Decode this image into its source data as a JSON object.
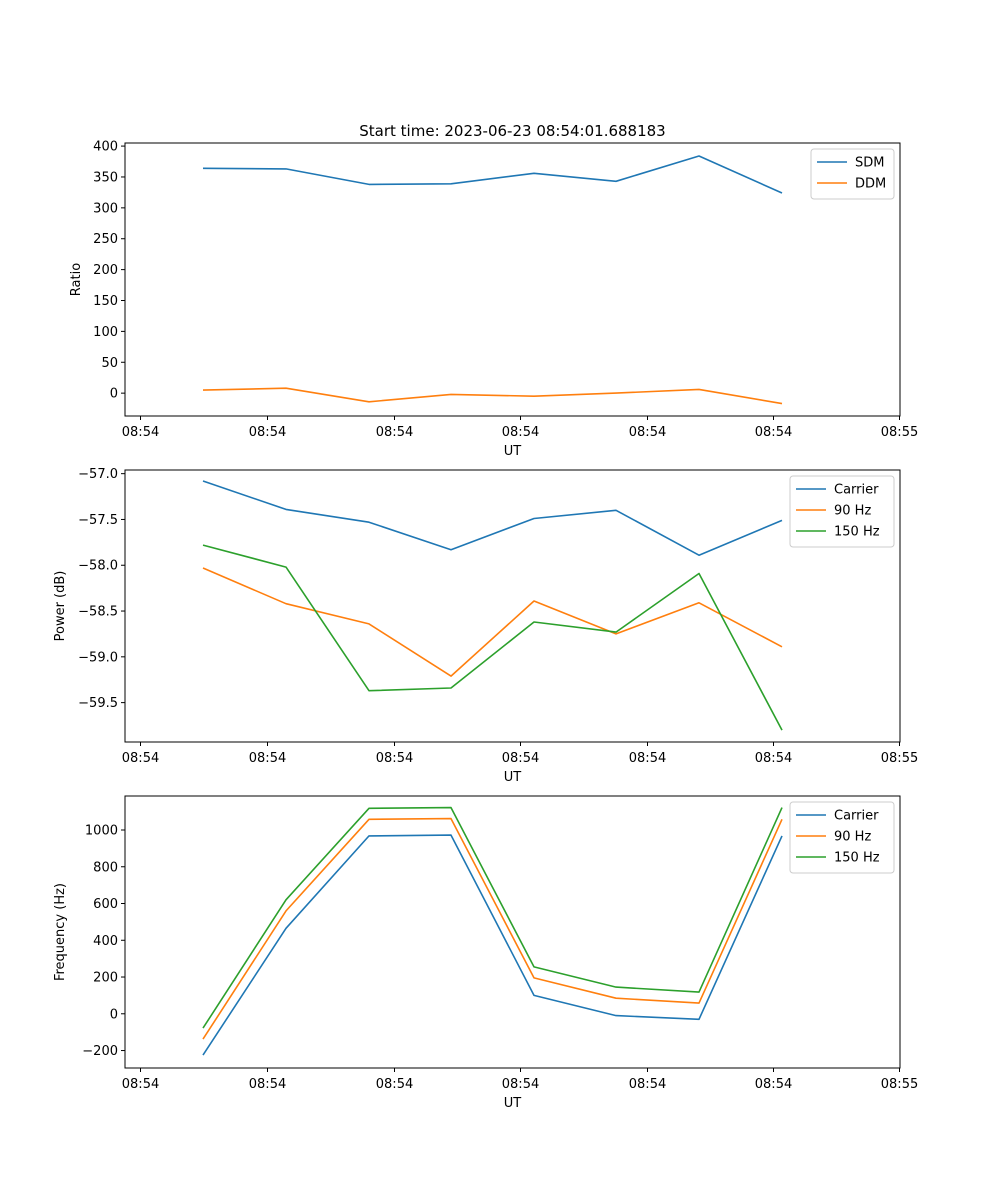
{
  "figure": {
    "title": "Start time: 2023-06-23 08:54:01.688183"
  },
  "chart_data": [
    {
      "type": "line",
      "xlabel": "UT",
      "ylabel": "Ratio",
      "ylim": [
        -37,
        405
      ],
      "yticks": [
        0,
        50,
        100,
        150,
        200,
        250,
        300,
        350,
        400
      ],
      "ytick_labels": [
        "0",
        "50",
        "100",
        "150",
        "200",
        "250",
        "300",
        "350",
        "400"
      ],
      "xtick_labels": [
        "08:54",
        "08:54",
        "08:54",
        "08:54",
        "08:54",
        "08:54",
        "08:55"
      ],
      "legend": "top-right",
      "series": [
        {
          "name": "SDM",
          "color": "#1f77b4",
          "values": [
            364,
            363,
            338,
            339,
            356,
            343,
            384,
            324
          ]
        },
        {
          "name": "DDM",
          "color": "#ff7f0e",
          "values": [
            5,
            8,
            -14,
            -2,
            -5,
            0,
            6,
            -17
          ]
        }
      ]
    },
    {
      "type": "line",
      "xlabel": "UT",
      "ylabel": "Power (dB)",
      "ylim": [
        -59.93,
        -56.96
      ],
      "yticks": [
        -57.0,
        -57.5,
        -58.0,
        -58.5,
        -59.0,
        -59.5
      ],
      "ytick_labels": [
        "−57.0",
        "−57.5",
        "−58.0",
        "−58.5",
        "−59.0",
        "−59.5"
      ],
      "xtick_labels": [
        "08:54",
        "08:54",
        "08:54",
        "08:54",
        "08:54",
        "08:54",
        "08:55"
      ],
      "legend": "top-right",
      "series": [
        {
          "name": "Carrier",
          "color": "#1f77b4",
          "values": [
            -57.08,
            -57.39,
            -57.53,
            -57.83,
            -57.49,
            -57.4,
            -57.89,
            -57.51
          ]
        },
        {
          "name": "90 Hz",
          "color": "#ff7f0e",
          "values": [
            -58.03,
            -58.42,
            -58.64,
            -59.21,
            -58.39,
            -58.75,
            -58.41,
            -58.89
          ]
        },
        {
          "name": "150 Hz",
          "color": "#2ca02c",
          "values": [
            -57.78,
            -58.02,
            -59.37,
            -59.34,
            -58.62,
            -58.73,
            -58.09,
            -59.8
          ]
        }
      ]
    },
    {
      "type": "line",
      "xlabel": "UT",
      "ylabel": "Frequency (Hz)",
      "ylim": [
        -295,
        1185
      ],
      "yticks": [
        -200,
        0,
        200,
        400,
        600,
        800,
        1000
      ],
      "ytick_labels": [
        "−200",
        "0",
        "200",
        "400",
        "600",
        "800",
        "1000"
      ],
      "xtick_labels": [
        "08:54",
        "08:54",
        "08:54",
        "08:54",
        "08:54",
        "08:54",
        "08:55"
      ],
      "legend": "top-right",
      "series": [
        {
          "name": "Carrier",
          "color": "#1f77b4",
          "values": [
            -225,
            465,
            968,
            972,
            100,
            -10,
            -30,
            968
          ]
        },
        {
          "name": "90 Hz",
          "color": "#ff7f0e",
          "values": [
            -138,
            560,
            1058,
            1062,
            195,
            85,
            58,
            1058
          ]
        },
        {
          "name": "150 Hz",
          "color": "#2ca02c",
          "values": [
            -78,
            620,
            1118,
            1122,
            255,
            145,
            118,
            1122
          ]
        }
      ]
    }
  ]
}
